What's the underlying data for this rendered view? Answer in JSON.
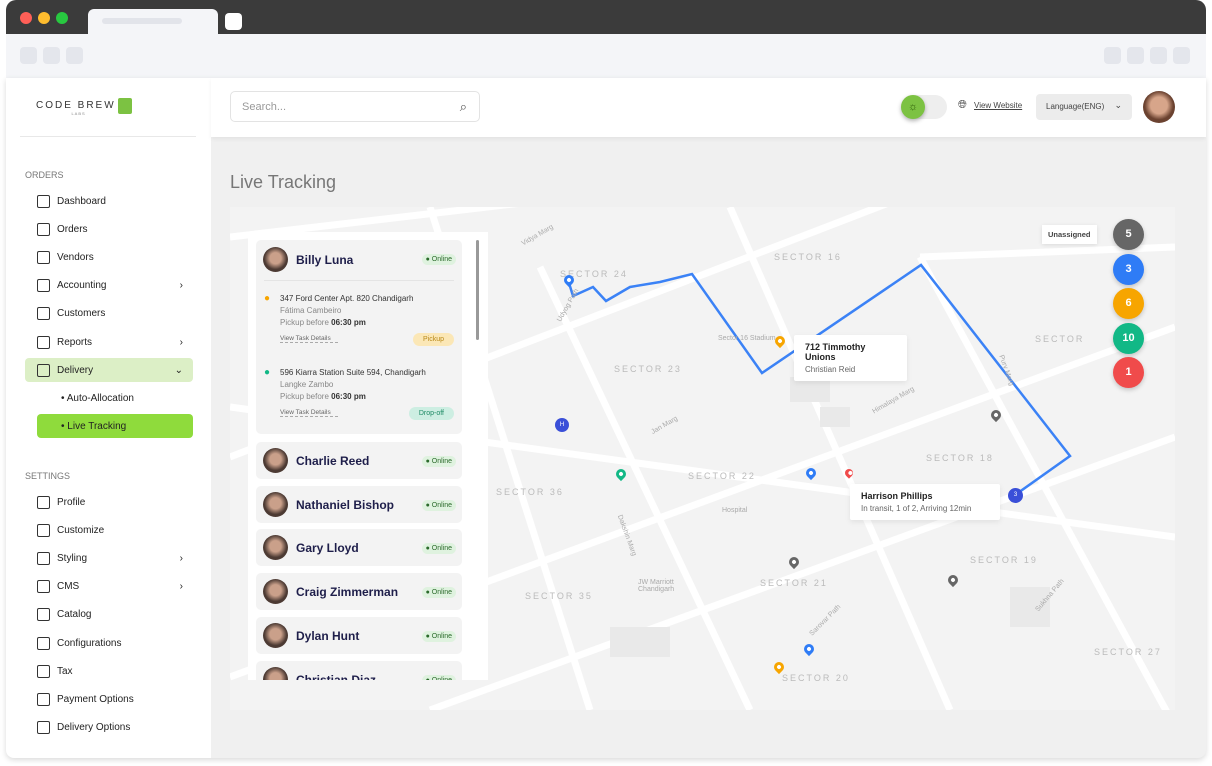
{
  "browser": {
    "colors": {
      "close": "#ff5f57",
      "min": "#febc2e",
      "max": "#28c840"
    }
  },
  "brand": {
    "name": "CODE BREW",
    "sub": "LABS"
  },
  "sidebar": {
    "orders_label": "ORDERS",
    "orders": [
      {
        "label": "Dashboard",
        "icon": "grid-icon"
      },
      {
        "label": "Orders",
        "icon": "bag-icon"
      },
      {
        "label": "Vendors",
        "icon": "store-icon"
      },
      {
        "label": "Accounting",
        "icon": "calculator-icon",
        "chevron": "›"
      },
      {
        "label": "Customers",
        "icon": "users-icon"
      },
      {
        "label": "Reports",
        "icon": "report-icon",
        "chevron": "›"
      },
      {
        "label": "Delivery",
        "icon": "box-icon",
        "chevron": "⌄"
      }
    ],
    "delivery_sub": [
      {
        "label": "• Auto-Allocation"
      },
      {
        "label": "• Live Tracking"
      }
    ],
    "settings_label": "SETTINGS",
    "settings": [
      {
        "label": "Profile",
        "icon": "user-icon"
      },
      {
        "label": "Customize",
        "icon": "sliders-icon"
      },
      {
        "label": "Styling",
        "icon": "tools-icon",
        "chevron": "›"
      },
      {
        "label": "CMS",
        "icon": "cms-icon",
        "chevron": "›"
      },
      {
        "label": "Catalog",
        "icon": "catalog-icon"
      },
      {
        "label": "Configurations",
        "icon": "config-icon"
      },
      {
        "label": "Tax",
        "icon": "tax-icon"
      },
      {
        "label": "Payment Options",
        "icon": "payment-icon"
      },
      {
        "label": "Delivery Options",
        "icon": "delivery-icon"
      }
    ]
  },
  "header": {
    "search_placeholder": "Search...",
    "view_website": "View Website",
    "language": "Language(ENG)",
    "theme_toggle": "light"
  },
  "page": {
    "title": "Live Tracking"
  },
  "drivers": [
    {
      "name": "Billy Luna",
      "status": "Online",
      "tasks": [
        {
          "address": "347 Ford Center Apt. 820 Chandigarh",
          "customer": "Fátima Cambeiro",
          "time_label": "Pickup before",
          "time": "06:30 pm",
          "link": "View Task Details",
          "tag": "Pickup"
        },
        {
          "address": "596 Kiarra Station Suite 594, Chandigarh",
          "customer": "Langke Zambo",
          "time_label": "Pickup before",
          "time": "06:30 pm",
          "link": "View Task Details",
          "tag": "Drop-off"
        }
      ]
    },
    {
      "name": "Charlie Reed",
      "status": "Online"
    },
    {
      "name": "Nathaniel Bishop",
      "status": "Online"
    },
    {
      "name": "Gary Lloyd",
      "status": "Online"
    },
    {
      "name": "Craig Zimmerman",
      "status": "Online"
    },
    {
      "name": "Dylan Hunt",
      "status": "Online"
    },
    {
      "name": "Christian Diaz",
      "status": "Online"
    }
  ],
  "map": {
    "sectors": [
      "SECTOR 24",
      "SECTOR 16",
      "SECTOR 23",
      "SECTOR 18",
      "SECTOR 22",
      "SECTOR 36",
      "SECTOR 21",
      "SECTOR 19",
      "SECTOR 35",
      "SECTOR 20",
      "SECTOR 27",
      "SECTOR"
    ],
    "streets": [
      "Vidya Marg",
      "Udyog Path",
      "Jan Marg",
      "Himalaya Marg",
      "Dakshin Marg",
      "Sarovar Path",
      "Sukhna Path",
      "Hospital",
      "JW Marriott Chandigarh",
      "Sector 16 Stadium",
      "Purv Marg"
    ],
    "popups": [
      {
        "title": "712 Timmothy Unions",
        "sub": "Christian Reid"
      },
      {
        "title": "Harrison Phillips",
        "sub": "In transit, 1 of 2, Arriving 12min"
      }
    ],
    "route_color": "#3b82f6",
    "unassigned_label": "Unassigned",
    "counters": [
      {
        "value": "5",
        "color": "#666666"
      },
      {
        "value": "3",
        "color": "#2f7cf6"
      },
      {
        "value": "6",
        "color": "#f7a500"
      },
      {
        "value": "10",
        "color": "#12b886"
      },
      {
        "value": "1",
        "color": "#f04b4b"
      }
    ],
    "agent_badge": "3",
    "hub_badge": "H"
  }
}
